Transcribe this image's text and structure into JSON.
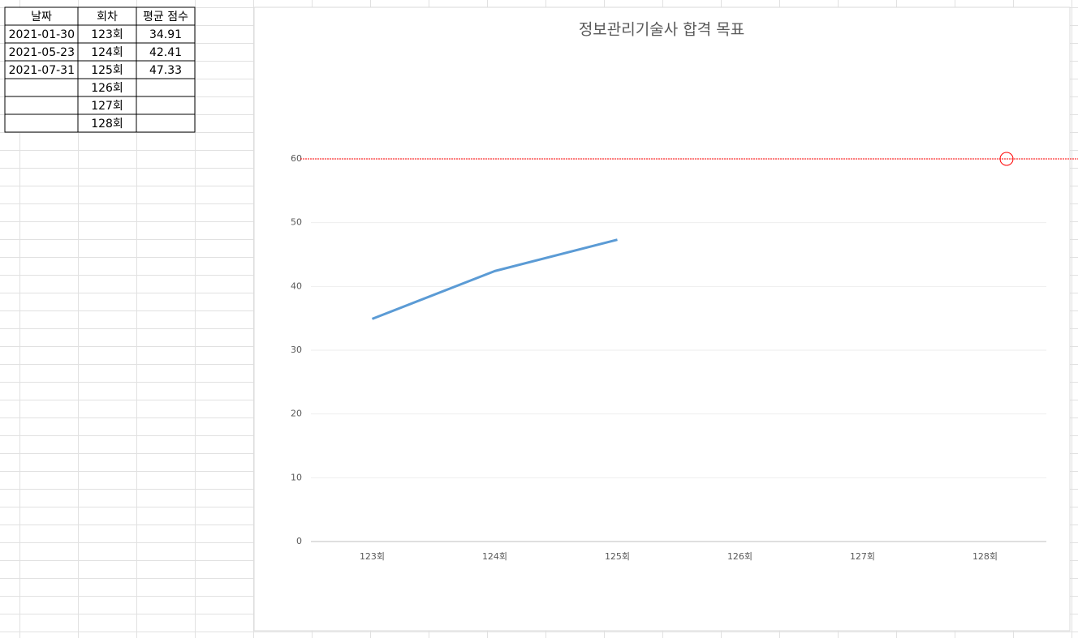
{
  "table": {
    "header": [
      "날짜",
      "회차",
      "평균 점수"
    ],
    "rows": [
      [
        "2021-01-30",
        "123회",
        "34.91"
      ],
      [
        "2021-05-23",
        "124회",
        "42.41"
      ],
      [
        "2021-07-31",
        "125회",
        "47.33"
      ],
      [
        null,
        "126회",
        null
      ],
      [
        null,
        "127회",
        null
      ],
      [
        null,
        "128회",
        null
      ]
    ]
  },
  "chart_data": {
    "type": "line",
    "title": "정보관리기술사 합격 목표",
    "categories": [
      "123회",
      "124회",
      "125회",
      "126회",
      "127회",
      "128회"
    ],
    "series": [
      {
        "color": "#5b9bd5",
        "values": [
          34.91,
          42.41,
          47.33,
          null,
          null,
          null
        ]
      }
    ],
    "ylim": [
      0,
      60
    ],
    "yticks": [
      0,
      10,
      20,
      30,
      40,
      50,
      60
    ],
    "grid": true,
    "target": 60,
    "target_color": "#ff0000"
  }
}
